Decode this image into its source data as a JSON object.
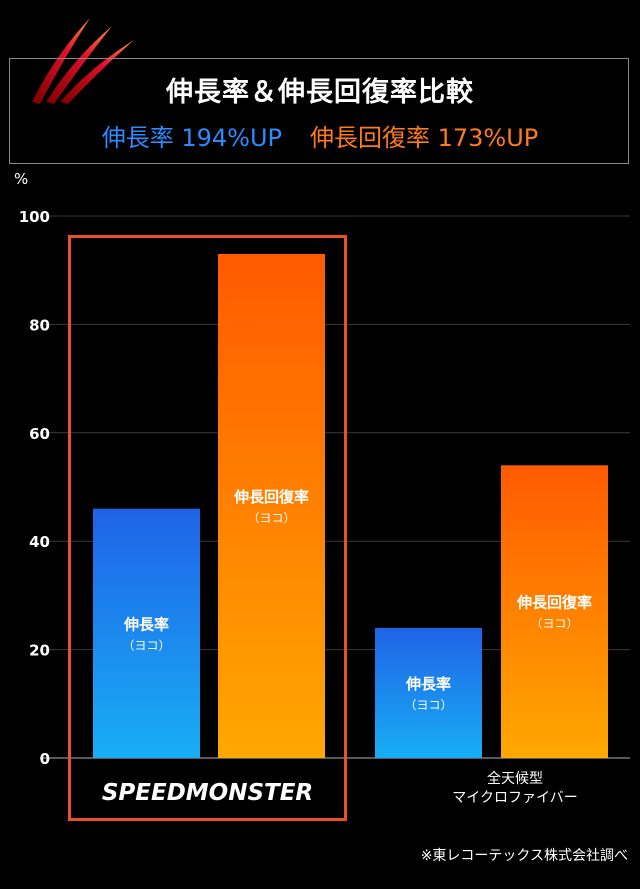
{
  "header": {
    "title": "伸長率＆伸長回復率比較",
    "subtitle_left": "伸長率 194%UP",
    "subtitle_right": "伸長回復率 173%UP"
  },
  "unit_label": "%",
  "brand": "SPEEDMONSTER",
  "category2_line1": "全天候型",
  "category2_line2": "マイクロファイバー",
  "footnote": "※東レコーテックス株式会社調べ",
  "bar_label_main": [
    "伸長率",
    "伸長回復率"
  ],
  "bar_label_sub": "（ヨコ）",
  "colors": {
    "blue_top": "#1f63e6",
    "blue_bottom": "#18aef5",
    "orange_top": "#ff5a00",
    "orange_bottom": "#ffa800",
    "highlight_border": "#e8522b"
  },
  "chart_data": {
    "type": "bar",
    "categories": [
      "SPEEDMONSTER",
      "全天候型 マイクロファイバー"
    ],
    "series": [
      {
        "name": "伸長率（ヨコ）",
        "values": [
          46,
          24
        ]
      },
      {
        "name": "伸長回復率（ヨコ）",
        "values": [
          93,
          54
        ]
      }
    ],
    "ylim": [
      0,
      100
    ],
    "yticks": [
      0,
      20,
      40,
      60,
      80,
      100
    ],
    "ylabel": "%",
    "grid": true
  }
}
